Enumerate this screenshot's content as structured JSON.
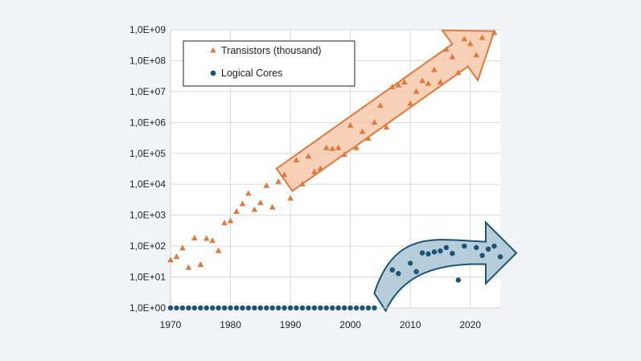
{
  "chart_data": {
    "type": "scatter",
    "title": "",
    "xlabel": "",
    "ylabel": "",
    "xlim": [
      1970,
      2025
    ],
    "ylim": [
      1,
      1000000000
    ],
    "yscale": "log",
    "grid": true,
    "legend_position": "top-left",
    "x_ticks": [
      1970,
      1980,
      1990,
      2000,
      2010,
      2020
    ],
    "x_tick_labels": [
      "1970",
      "1980",
      "1990",
      "2000",
      "2010",
      "2020"
    ],
    "y_tick_labels": [
      "1,0E+00",
      "1,0E+01",
      "1,0E+02",
      "1,0E+03",
      "1,0E+04",
      "1,0E+05",
      "1,0E+06",
      "1,0E+07",
      "1,0E+08",
      "1,0E+09"
    ],
    "series": [
      {
        "name": "Transistors (thousand)",
        "marker": "triangle",
        "color": "#e07a3c",
        "points": [
          [
            1970,
            35
          ],
          [
            1971,
            45
          ],
          [
            1972,
            85
          ],
          [
            1973,
            20
          ],
          [
            1974,
            180
          ],
          [
            1975,
            25
          ],
          [
            1976,
            175
          ],
          [
            1977,
            150
          ],
          [
            1978,
            70
          ],
          [
            1979,
            550
          ],
          [
            1980,
            650
          ],
          [
            1981,
            1300
          ],
          [
            1982,
            2300
          ],
          [
            1983,
            5000
          ],
          [
            1984,
            1500
          ],
          [
            1985,
            2500
          ],
          [
            1986,
            9000
          ],
          [
            1987,
            1800
          ],
          [
            1988,
            12000
          ],
          [
            1989,
            20000
          ],
          [
            1990,
            3500
          ],
          [
            1991,
            60000
          ],
          [
            1992,
            10000
          ],
          [
            1993,
            80000
          ],
          [
            1994,
            25000
          ],
          [
            1995,
            32000
          ],
          [
            1996,
            150000
          ],
          [
            1997,
            140000
          ],
          [
            1998,
            150000
          ],
          [
            1999,
            90000
          ],
          [
            2000,
            800000
          ],
          [
            2001,
            150000
          ],
          [
            2002,
            500000
          ],
          [
            2003,
            300000
          ],
          [
            2004,
            1000000
          ],
          [
            2005,
            3500000
          ],
          [
            2006,
            700000
          ],
          [
            2007,
            14000000
          ],
          [
            2008,
            16000000
          ],
          [
            2009,
            20000000
          ],
          [
            2010,
            4000000
          ],
          [
            2011,
            10000000
          ],
          [
            2012,
            22000000
          ],
          [
            2013,
            18000000
          ],
          [
            2014,
            50000000
          ],
          [
            2015,
            20000000
          ],
          [
            2016,
            230000000
          ],
          [
            2017,
            130000000
          ],
          [
            2018,
            40000000
          ],
          [
            2019,
            500000000
          ],
          [
            2020,
            350000000
          ],
          [
            2021,
            150000000
          ],
          [
            2022,
            550000000
          ],
          [
            2024,
            800000000
          ]
        ]
      },
      {
        "name": "Logical Cores",
        "marker": "circle",
        "color": "#1c5478",
        "points": [
          [
            1970,
            1
          ],
          [
            1971,
            1
          ],
          [
            1972,
            1
          ],
          [
            1973,
            1
          ],
          [
            1974,
            1
          ],
          [
            1975,
            1
          ],
          [
            1976,
            1
          ],
          [
            1977,
            1
          ],
          [
            1978,
            1
          ],
          [
            1979,
            1
          ],
          [
            1980,
            1
          ],
          [
            1981,
            1
          ],
          [
            1982,
            1
          ],
          [
            1983,
            1
          ],
          [
            1984,
            1
          ],
          [
            1985,
            1
          ],
          [
            1986,
            1
          ],
          [
            1987,
            1
          ],
          [
            1988,
            1
          ],
          [
            1989,
            1
          ],
          [
            1990,
            1
          ],
          [
            1991,
            1
          ],
          [
            1992,
            1
          ],
          [
            1993,
            1
          ],
          [
            1994,
            1
          ],
          [
            1995,
            1
          ],
          [
            1996,
            1
          ],
          [
            1997,
            1
          ],
          [
            1998,
            1
          ],
          [
            1999,
            1
          ],
          [
            2000,
            1
          ],
          [
            2001,
            1
          ],
          [
            2002,
            1
          ],
          [
            2003,
            1
          ],
          [
            2004,
            1
          ],
          [
            2007,
            17
          ],
          [
            2008,
            13
          ],
          [
            2010,
            28
          ],
          [
            2011,
            15
          ],
          [
            2012,
            60
          ],
          [
            2013,
            56
          ],
          [
            2014,
            65
          ],
          [
            2015,
            70
          ],
          [
            2016,
            90
          ],
          [
            2017,
            58
          ],
          [
            2018,
            8
          ],
          [
            2019,
            100
          ],
          [
            2021,
            90
          ],
          [
            2022,
            50
          ],
          [
            2023,
            80
          ],
          [
            2024,
            100
          ],
          [
            2025,
            45
          ]
        ]
      }
    ],
    "annotations": [
      {
        "kind": "straight-arrow",
        "color": "#e07a3c",
        "fill": "#f5c6a6",
        "from": [
          1989,
          14000
        ],
        "to": [
          2024,
          900000000
        ]
      },
      {
        "kind": "curved-arrow",
        "color": "#1c5478",
        "fill": "#a9c4d4",
        "from": [
          2004,
          3
        ],
        "to": [
          2025,
          60
        ]
      }
    ]
  }
}
